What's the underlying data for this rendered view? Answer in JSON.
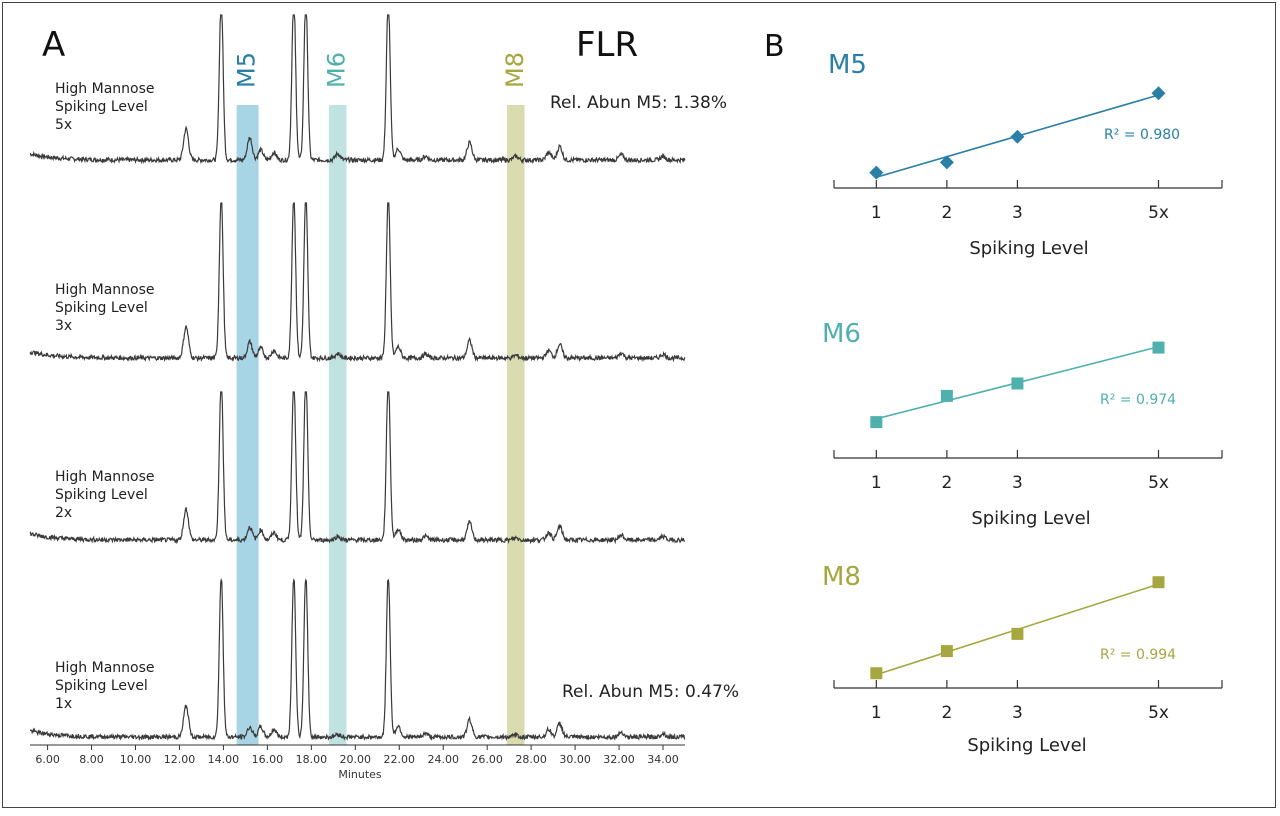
{
  "panels": {
    "a_label": "A",
    "b_label": "B",
    "detector_label": "FLR"
  },
  "colors": {
    "M5": "#2a7fa6",
    "M6": "#4fb0ae",
    "M8": "#a6a740",
    "M5_band": "#9fd0e2",
    "M6_band": "#b9e0de",
    "M8_band": "#d6d8a6",
    "trace": "#3a3a3a"
  },
  "chart_data": [
    {
      "type": "line",
      "panel": "A",
      "xlabel": "Minutes",
      "xlim": [
        5.2,
        35.0
      ],
      "x_ticks": [
        6,
        8,
        10,
        12,
        14,
        16,
        18,
        20,
        22,
        24,
        26,
        28,
        30,
        32,
        34
      ],
      "x_tick_labels": [
        "6.00",
        "8.00",
        "10.00",
        "12.00",
        "14.00",
        "16.00",
        "18.00",
        "20.00",
        "22.00",
        "24.00",
        "26.00",
        "28.00",
        "30.00",
        "32.00",
        "34.00"
      ],
      "highlight_bands": [
        {
          "name": "M5",
          "from": 14.6,
          "to": 15.6
        },
        {
          "name": "M6",
          "from": 18.8,
          "to": 19.6
        },
        {
          "name": "M8",
          "from": 26.9,
          "to": 27.7
        }
      ],
      "series": [
        {
          "label_lines": [
            "High Mannose",
            "Spiking Level",
            "5x"
          ],
          "level": 5
        },
        {
          "label_lines": [
            "High Mannose",
            "Spiking Level",
            "3x"
          ],
          "level": 3
        },
        {
          "label_lines": [
            "High Mannose",
            "Spiking Level",
            "2x"
          ],
          "level": 2
        },
        {
          "label_lines": [
            "High Mannose",
            "Spiking Level",
            "1x"
          ],
          "level": 1
        }
      ],
      "peaks": [
        {
          "t": 12.3,
          "h": 0.25
        },
        {
          "t": 13.9,
          "h": 1.3
        },
        {
          "t": 15.2,
          "h": 0.18,
          "scales": true
        },
        {
          "t": 15.7,
          "h": 0.08
        },
        {
          "t": 16.3,
          "h": 0.06
        },
        {
          "t": 17.2,
          "h": 1.3
        },
        {
          "t": 17.75,
          "h": 1.3
        },
        {
          "t": 19.2,
          "h": 0.05,
          "scales": true
        },
        {
          "t": 21.5,
          "h": 1.3
        },
        {
          "t": 21.95,
          "h": 0.09
        },
        {
          "t": 23.2,
          "h": 0.03
        },
        {
          "t": 25.2,
          "h": 0.14
        },
        {
          "t": 27.3,
          "h": 0.03,
          "scales": true
        },
        {
          "t": 28.8,
          "h": 0.06
        },
        {
          "t": 29.3,
          "h": 0.11
        },
        {
          "t": 32.1,
          "h": 0.04
        },
        {
          "t": 34.0,
          "h": 0.03
        }
      ],
      "annotations": {
        "top": "Rel. Abun M5: 1.38%",
        "bottom": "Rel. Abun M5: 0.47%"
      }
    },
    {
      "type": "scatter",
      "panel": "B",
      "title": "M5",
      "marker": "diamond",
      "x": [
        1,
        2,
        3,
        5
      ],
      "y": [
        0.12,
        0.2,
        0.4,
        0.74
      ],
      "xlim": [
        0.4,
        5.9
      ],
      "ylim": [
        0,
        1
      ],
      "x_tick_labels": [
        "1",
        "2",
        "3",
        "5x"
      ],
      "xlabel": "Spiking Level",
      "r2": "R² = 0.980"
    },
    {
      "type": "scatter",
      "panel": "B",
      "title": "M6",
      "marker": "square",
      "x": [
        1,
        2,
        3,
        5
      ],
      "y": [
        0.26,
        0.45,
        0.54,
        0.8
      ],
      "xlim": [
        0.4,
        5.9
      ],
      "ylim": [
        0,
        1
      ],
      "x_tick_labels": [
        "1",
        "2",
        "3",
        "5x"
      ],
      "xlabel": "Spiking Level",
      "r2": "R² = 0.974"
    },
    {
      "type": "scatter",
      "panel": "B",
      "title": "M8",
      "marker": "square",
      "x": [
        1,
        2,
        3,
        5
      ],
      "y": [
        0.12,
        0.3,
        0.44,
        0.86
      ],
      "xlim": [
        0.4,
        5.9
      ],
      "ylim": [
        0,
        1
      ],
      "x_tick_labels": [
        "1",
        "2",
        "3",
        "5x"
      ],
      "xlabel": "Spiking Level",
      "r2": "R² = 0.994"
    }
  ]
}
